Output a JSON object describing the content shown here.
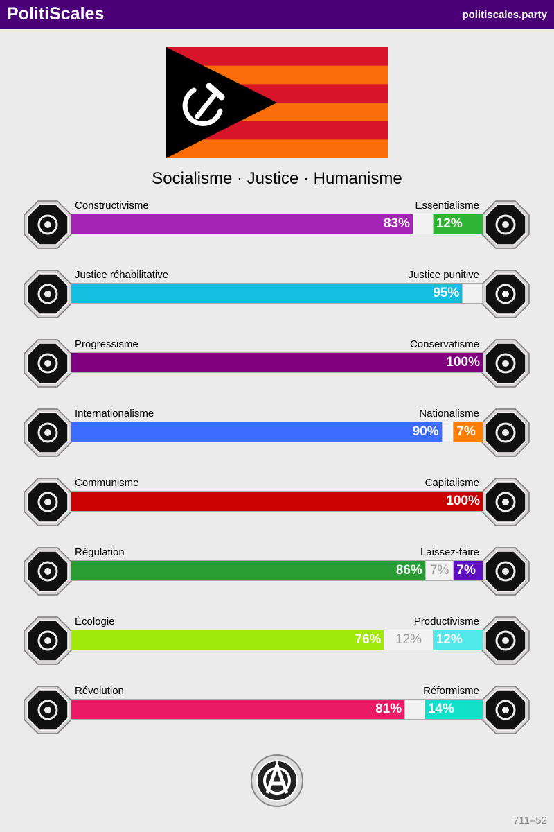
{
  "header": {
    "brand": "PolitiScales",
    "site": "politiscales.party",
    "color": "#4b0077"
  },
  "flag": {
    "stripes": [
      "#d7142a",
      "#fa6e0a",
      "#d7142a",
      "#fa6e0a",
      "#d7142a",
      "#fa6e0a"
    ],
    "triangle": "#000000",
    "symbol": "hammer-sickle-icon"
  },
  "motto": "Socialisme · Justice · Humanisme",
  "axes": [
    {
      "left": "Constructivisme",
      "right": "Essentialisme",
      "lv": 83,
      "mv": 5,
      "rv": 12,
      "ll": "83%",
      "ml": "",
      "rl": "12%",
      "lc": "#a425b5",
      "rc": "#2fb534",
      "li": "eye-icon",
      "ri": "flower-icon"
    },
    {
      "left": "Justice réhabilitative",
      "right": "Justice punitive",
      "lv": 95,
      "mv": 5,
      "rv": 0,
      "ll": "95%",
      "ml": "",
      "rl": "",
      "lc": "#14bee0",
      "rc": "#000000",
      "li": "handshake-icon",
      "ri": "prison-bars-icon"
    },
    {
      "left": "Progressisme",
      "right": "Conservatisme",
      "lv": 100,
      "mv": 0,
      "rv": 0,
      "ll": "100%",
      "ml": "",
      "rl": "",
      "lc": "#800080",
      "rc": "#000000",
      "li": "comet-icon",
      "ri": "quill-icon"
    },
    {
      "left": "Internationalisme",
      "right": "Nationalisme",
      "lv": 90,
      "mv": 3,
      "rv": 7,
      "ll": "90%",
      "ml": "",
      "rl": "7%",
      "lc": "#3c6cff",
      "rc": "#ff8000",
      "li": "globe-icon",
      "ri": "flag-icon"
    },
    {
      "left": "Communisme",
      "right": "Capitalisme",
      "lv": 100,
      "mv": 0,
      "rv": 0,
      "ll": "100%",
      "ml": "",
      "rl": "",
      "lc": "#cc0000",
      "rc": "#000000",
      "li": "hammer-sickle-icon",
      "ri": "money-bag-icon"
    },
    {
      "left": "Régulation",
      "right": "Laissez-faire",
      "lv": 86,
      "mv": 7,
      "rv": 7,
      "ll": "86%",
      "ml": "7%",
      "rl": "7%",
      "lc": "#2a9c34",
      "rc": "#6010c0",
      "li": "ruler-icon",
      "ri": "butterfly-icon"
    },
    {
      "left": "Écologie",
      "right": "Productivisme",
      "lv": 76,
      "mv": 12,
      "rv": 12,
      "ll": "76%",
      "ml": "12%",
      "rl": "12%",
      "lc": "#a0e80a",
      "rc": "#50e8e8",
      "li": "sprout-icon",
      "ri": "gear-icon"
    },
    {
      "left": "Révolution",
      "right": "Réformisme",
      "lv": 81,
      "mv": 5,
      "rv": 14,
      "ll": "81%",
      "ml": "",
      "rl": "14%",
      "lc": "#eb1a64",
      "rc": "#10e0c8",
      "li": "rose-fist-icon",
      "ri": "boat-icon"
    }
  ],
  "badge": "anarchism-seal-icon",
  "code": "711–52"
}
